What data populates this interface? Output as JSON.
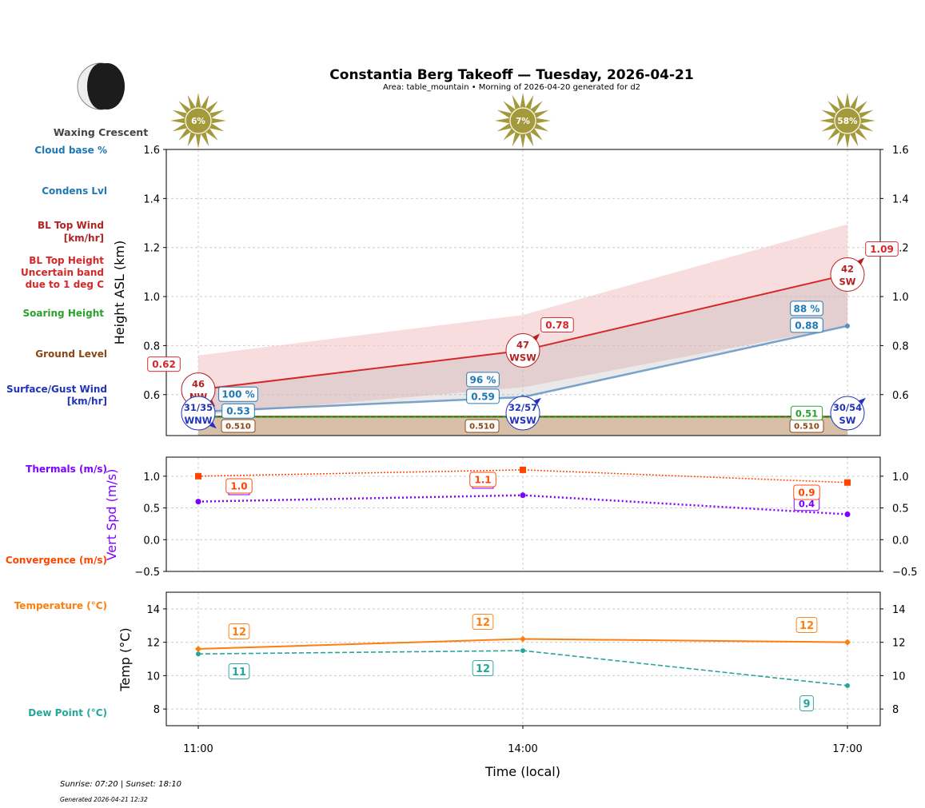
{
  "header": {
    "title": "Constantia Berg Takeoff — Tuesday, 2026-04-21",
    "subtitle": "Area: table_mountain • Morning of 2026-04-20 generated for d2",
    "moon_phase": "Waxing Crescent",
    "moon_icon": "waxing-crescent-moon-icon"
  },
  "footer": {
    "sun_times": "Sunrise: 07:20 | Sunset: 18:10",
    "generated": "Generated 2026-04-21 12:32"
  },
  "row_labels": {
    "cloud_base": "Cloud base %",
    "condens": "Condens Lvl",
    "bl_wind_1": "BL Top Wind",
    "bl_wind_2": "[km/hr]",
    "bl_height_1": "BL Top Height",
    "bl_height_2": "Uncertain band",
    "bl_height_3": "due to 1 deg C",
    "soaring": "Soaring Height",
    "ground": "Ground Level",
    "surface_1": "Surface/Gust Wind",
    "surface_2": "[km/hr]",
    "thermals": "Thermals (m/s)",
    "convergence": "Convergence (m/s)",
    "temperature": "Temperature (°C)",
    "dewpoint": "Dew Point (°C)"
  },
  "colors": {
    "cloud_base": "#1f77b4",
    "bl_wind": "#b22222",
    "bl_top": "#d62728",
    "band": "#f4c6c9",
    "soaring": "#2ca02c",
    "ground": "#8b4513",
    "surface_wind": "#2233bb",
    "thermals": "#8000ff",
    "convergence": "#ff4500",
    "temperature": "#ff7f0e",
    "dewpoint": "#26a69a",
    "sun": "#a49a3c"
  },
  "chart_data": [
    {
      "type": "line",
      "ylabel": "Height ASL (km)",
      "ylim": [
        0.433,
        1.6
      ],
      "yticks": [
        "0.6",
        "0.8",
        "1.0",
        "1.2",
        "1.4",
        "1.6"
      ],
      "grid": true,
      "x": [
        "11:00",
        "14:00",
        "17:00"
      ],
      "sun_percent": [
        "6%",
        "7%",
        "58%"
      ],
      "bl_top": [
        0.62,
        0.78,
        1.09
      ],
      "bl_top_labels": [
        "0.62",
        "0.78",
        "1.09"
      ],
      "bl_band_upper": [
        0.76,
        0.925,
        1.295
      ],
      "bl_band_lower": [
        0.515,
        0.63,
        0.88
      ],
      "cloud_base": [
        0.53,
        0.59,
        0.88
      ],
      "cloud_base_labels": [
        "0.53",
        "0.59",
        "0.88"
      ],
      "cloud_percent": [
        "100 %",
        "96 %",
        "88 %"
      ],
      "ground_level": [
        0.51,
        0.51,
        0.51
      ],
      "ground_labels": [
        "0.510",
        "0.510",
        "0.510"
      ],
      "soaring_height": [
        0.51,
        0.51,
        0.51
      ],
      "soaring_labels": [
        "0.51"
      ],
      "bl_wind": [
        {
          "speed": "46",
          "dir": "NW"
        },
        {
          "speed": "47",
          "dir": "WSW"
        },
        {
          "speed": "42",
          "dir": "SW"
        }
      ],
      "surface_wind": [
        {
          "speed": "31/35",
          "dir": "WNW"
        },
        {
          "speed": "32/57",
          "dir": "WSW"
        },
        {
          "speed": "30/54",
          "dir": "SW"
        }
      ]
    },
    {
      "type": "line",
      "ylabel": "Vert Spd (m/s)",
      "ylim": [
        -0.5,
        1.3
      ],
      "yticks": [
        "−0.5",
        "0.0",
        "0.5",
        "1.0"
      ],
      "grid": true,
      "x": [
        "11:00",
        "14:00",
        "17:00"
      ],
      "series": [
        {
          "name": "Convergence (m/s)",
          "values": [
            1.0,
            1.1,
            0.9
          ],
          "labels": [
            "1.0",
            "1.1",
            "0.9"
          ]
        },
        {
          "name": "Thermals (m/s)",
          "values": [
            0.6,
            0.7,
            0.4
          ],
          "labels": [
            "",
            "",
            "0.4"
          ]
        }
      ]
    },
    {
      "type": "line",
      "ylabel": "Temp (°C)",
      "xlabel": "Time (local)",
      "ylim": [
        7,
        15
      ],
      "yticks": [
        "8",
        "10",
        "12",
        "14"
      ],
      "xticks": [
        "11:00",
        "14:00",
        "17:00"
      ],
      "grid": true,
      "x": [
        "11:00",
        "14:00",
        "17:00"
      ],
      "series": [
        {
          "name": "Temperature (°C)",
          "values": [
            11.6,
            12.2,
            12.0
          ],
          "labels": [
            "12",
            "12",
            "12"
          ]
        },
        {
          "name": "Dew Point (°C)",
          "values": [
            11.3,
            11.5,
            9.4
          ],
          "labels": [
            "11",
            "12",
            "9"
          ]
        }
      ]
    }
  ]
}
